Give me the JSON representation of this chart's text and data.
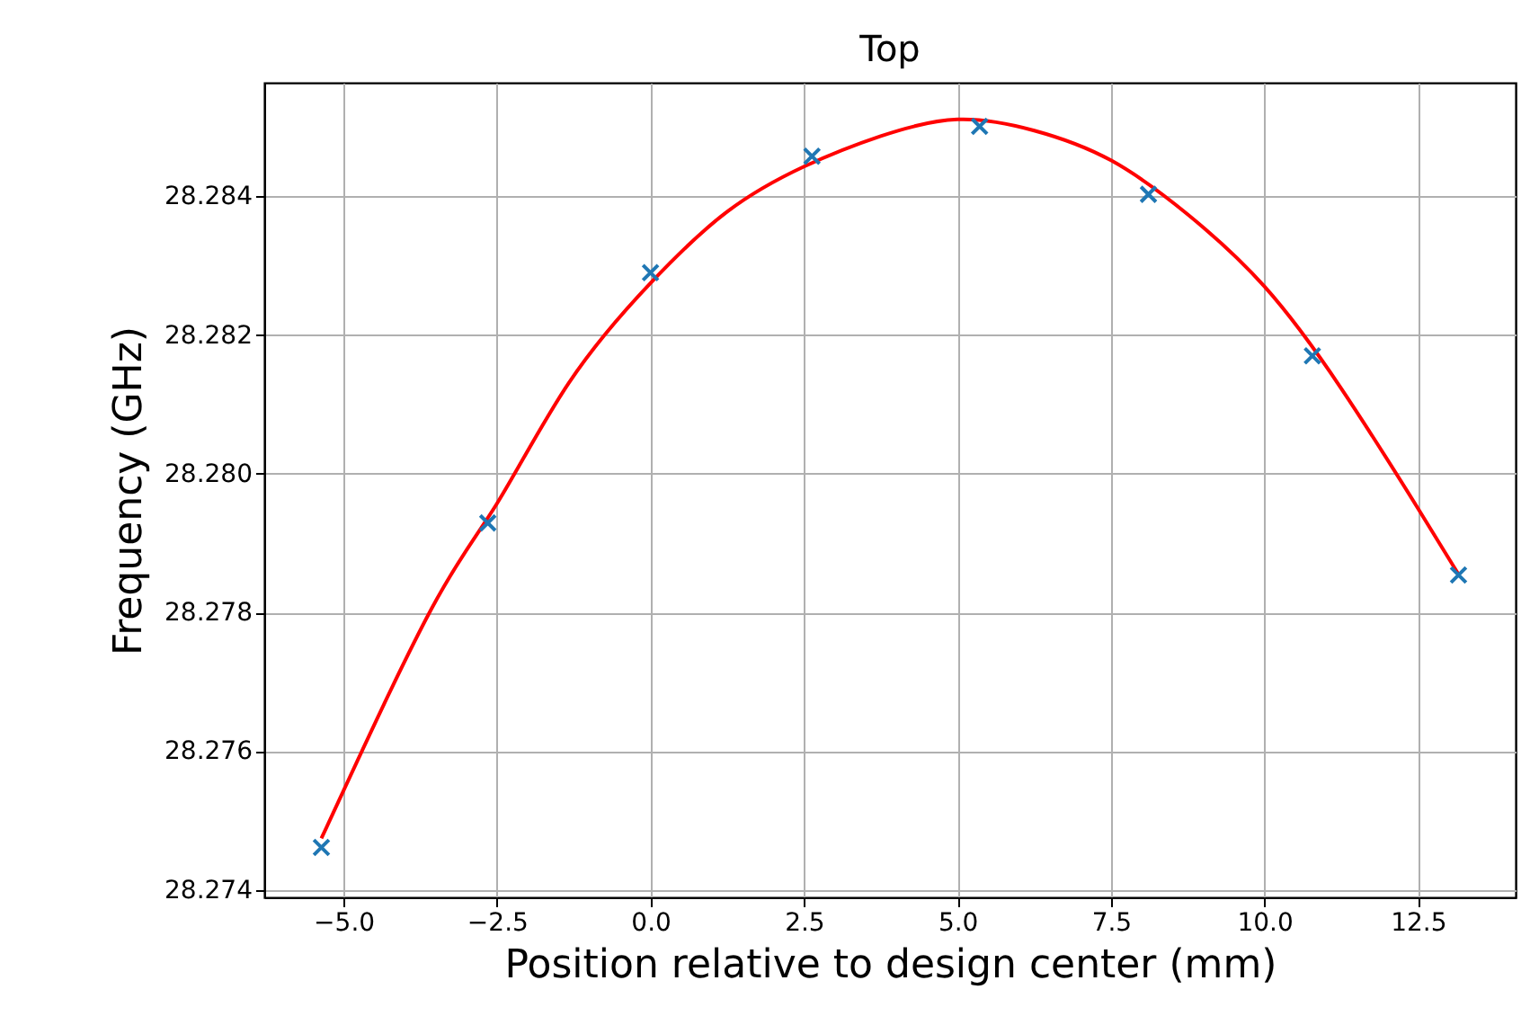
{
  "chart_data": {
    "type": "scatter",
    "title": "Top",
    "xlabel": "Position relative to design center (mm)",
    "ylabel": "Frequency (GHz)",
    "series": [
      {
        "color": "#1f77b4",
        "marker": "cross",
        "x": [
          -5.36,
          -2.65,
          0,
          2.63,
          5.36,
          8.11,
          10.78,
          13.16
        ],
        "values": [
          28.27461,
          28.27929,
          28.2829,
          28.28458,
          28.28501,
          28.28403,
          28.2817,
          28.27854
        ]
      },
      {
        "type": "line",
        "color": "#ff0000",
        "line_style": "solid",
        "marker": "none",
        "x": [
          -5.36,
          -3.58,
          -2.5,
          -1.33,
          0,
          1.25,
          2.5,
          3.75,
          5,
          6.25,
          7.5,
          8.75,
          10,
          11.25,
          12.5,
          13.16
        ],
        "values": [
          28.27474,
          28.27803,
          28.27957,
          28.28131,
          28.28275,
          28.28378,
          28.28443,
          28.28487,
          28.28511,
          28.28495,
          28.28452,
          28.28374,
          28.2827,
          28.28123,
          28.2795,
          28.27855
        ]
      }
    ],
    "xlim": [
      -6.29,
      14.09
    ],
    "ylim": [
      28.27389,
      28.28564
    ],
    "xticks": [
      {
        "value": -5,
        "label": "−5.0"
      },
      {
        "value": -2.5,
        "label": "−2.5"
      },
      {
        "value": 0,
        "label": "0.0"
      },
      {
        "value": 2.5,
        "label": "2.5"
      },
      {
        "value": 5,
        "label": "5.0"
      },
      {
        "value": 7.5,
        "label": "7.5"
      },
      {
        "value": 10,
        "label": "10.0"
      },
      {
        "value": 12.5,
        "label": "12.5"
      }
    ],
    "yticks": [
      28.274,
      28.276,
      28.278,
      {
        "value": 28.28,
        "label": "28.280"
      },
      28.282,
      28.284
    ],
    "grid": true
  }
}
